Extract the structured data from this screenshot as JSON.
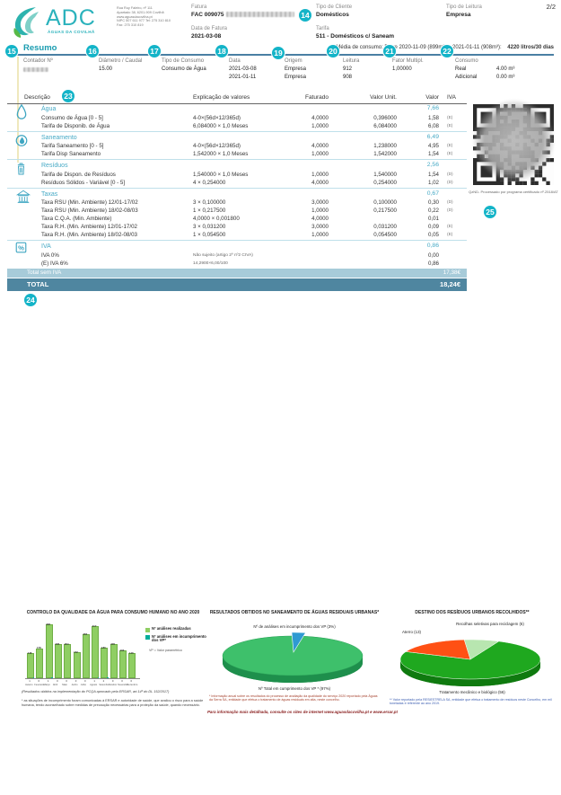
{
  "header": {
    "brand": "ADC",
    "brand_sub": "ÁGUAS DA COVILHÃ",
    "address_lines": [
      "Rua Ruy Faleiro, nº 111",
      "Apartado 38, 6201-909 Covilhã",
      "www.aguasdacovilha.pt",
      "NIPC 507 611 977  Tel: 275 310 810",
      "Fax: 275 310 819"
    ],
    "fatura_label": "Fatura",
    "fatura_value": "FAC 009075",
    "data_fatura_label": "Data de Fatura",
    "data_fatura_value": "2021-03-08",
    "tipo_cliente_label": "Tipo de Cliente",
    "tipo_cliente_value": "Domésticos",
    "tarifa_label": "Tarifa",
    "tarifa_value": "511 - Domésticos c/ Saneam",
    "tipo_leitura_label": "Tipo de Leitura",
    "tipo_leitura_value": "Empresa",
    "page_number": "2/2"
  },
  "annotations": {
    "badges": [
      "14",
      "15",
      "16",
      "17",
      "18",
      "19",
      "20",
      "21",
      "22",
      "23",
      "24",
      "25"
    ]
  },
  "resumo": {
    "title": "Resumo",
    "media_text": "Média de consumo: Entre  2020-11-09 (899m³) e 2021-01-11 (908m³):",
    "media_value": "4220 litros/30 dias",
    "contador_label": "Contador Nº",
    "diametro_label": "Diâmetro / Caudal",
    "diametro_value": "15.00",
    "tipo_consumo_label": "Tipo de Consumo",
    "tipo_consumo_value": "Consumo de Água",
    "data_label": "Data",
    "data_values": [
      "2021-03-08",
      "2021-01-11"
    ],
    "origem_label": "Origem",
    "origem_values": [
      "Empresa",
      "Empresa"
    ],
    "leitura_label": "Leitura",
    "leitura_values": [
      "912",
      "908"
    ],
    "fator_label": "Fator Multipl.",
    "fator_value": "1,00000",
    "consumo_label": "Consumo",
    "consumo_rows": [
      {
        "k": "Real",
        "v": "4.00 m³"
      },
      {
        "k": "Adicional",
        "v": "0.00 m³"
      }
    ]
  },
  "invoice_table": {
    "header": {
      "descricao": "Descrição",
      "explicacao": "Explicação de valores",
      "faturado": "Faturado",
      "valor_unit": "Valor Unit.",
      "valor": "Valor",
      "iva": "IVA"
    },
    "sections": [
      {
        "name": "Água",
        "icon": "water-drop-icon",
        "total": "7,66",
        "rows": [
          {
            "name": "Consumo de Água [0 - 5]",
            "explicacao": "4-0×(56d×12/365d)",
            "faturado": "4,0000",
            "valor_unit": "0,396000",
            "valor": "1,58",
            "iva": "(E)"
          },
          {
            "name": "Tarifa de Disponib. de Água",
            "explicacao": "6,084000 × 1,0 Meses",
            "faturado": "1,0000",
            "valor_unit": "6,084000",
            "valor": "6,08",
            "iva": "(E)"
          }
        ]
      },
      {
        "name": "Saneamento",
        "icon": "sanitation-icon",
        "total": "6,49",
        "rows": [
          {
            "name": "Tarifa Saneamento [0 - 5]",
            "explicacao": "4-0×(56d×12/365d)",
            "faturado": "4,0000",
            "valor_unit": "1,238000",
            "valor": "4,95",
            "iva": "(E)"
          },
          {
            "name": "Tarifa Disp Saneamento",
            "explicacao": "1,542000 × 1,0 Meses",
            "faturado": "1,0000",
            "valor_unit": "1,542000",
            "valor": "1,54",
            "iva": "(E)"
          }
        ]
      },
      {
        "name": "Resíduos",
        "icon": "waste-bin-icon",
        "total": "2,56",
        "rows": [
          {
            "name": "Tarifa de Dispon. de Resíduos",
            "explicacao": "1,540000 × 1,0 Meses",
            "faturado": "1,0000",
            "valor_unit": "1,540000",
            "valor": "1,54",
            "iva": "(D)"
          },
          {
            "name": "Resíduos Sólidos - Variável [0 - 5]",
            "explicacao": "4 × 0,254000",
            "faturado": "4,0000",
            "valor_unit": "0,254000",
            "valor": "1,02",
            "iva": "(D)"
          }
        ]
      },
      {
        "name": "Taxas",
        "icon": "taxes-icon",
        "total": "0,67",
        "rows": [
          {
            "name": "Taxa RSU (Min. Ambiente) 12/01-17/02",
            "explicacao": "3 × 0,100000",
            "faturado": "3,0000",
            "valor_unit": "0,100000",
            "valor": "0,30",
            "iva": "(D)"
          },
          {
            "name": "Taxa RSU (Min. Ambiente) 18/02-08/03",
            "explicacao": "1 × 0,217500",
            "faturado": "1,0000",
            "valor_unit": "0,217500",
            "valor": "0,22",
            "iva": "(D)"
          },
          {
            "name": "Taxa C.Q.A. (Min. Ambiente)",
            "explicacao": "4,0000 × 0,001800",
            "faturado": "4,0000",
            "valor_unit": "",
            "valor": "0,01",
            "iva": ""
          },
          {
            "name": "Taxa R.H. (Min. Ambiente) 12/01-17/02",
            "explicacao": "3 × 0,031200",
            "faturado": "3,0000",
            "valor_unit": "0,031200",
            "valor": "0,09",
            "iva": "(E)"
          },
          {
            "name": "Taxa R.H. (Min. Ambiente) 18/02-08/03",
            "explicacao": "1 × 0,054500",
            "faturado": "1,0000",
            "valor_unit": "0,054500",
            "valor": "0,05",
            "iva": "(E)"
          }
        ]
      },
      {
        "name": "IVA",
        "icon": "vat-icon",
        "total": "0,86",
        "rows": [
          {
            "name": "IVA 0%",
            "explicacao": "Não sujeito (artigo 2º nº2 CIVA)",
            "faturado": "",
            "valor_unit": "",
            "valor": "0,00",
            "iva": "",
            "small": true
          },
          {
            "name": "(E) IVA 6%",
            "explicacao": "14,2900×6,00/100",
            "faturado": "",
            "valor_unit": "",
            "valor": "0,86",
            "iva": "",
            "small": true
          }
        ]
      }
    ],
    "totals": {
      "subtotal_label": "Total sem IVA",
      "subtotal_value": "17,38€",
      "total_label": "TOTAL",
      "total_value": "18,24€"
    }
  },
  "qr": {
    "caption": "QzND- Processado por programa certificado nº.2518/AT"
  },
  "chart_data": [
    {
      "id": "water_quality",
      "type": "bar",
      "title": "CONTROLO DA QUALIDADE DA ÁGUA PARA CONSUMO HUMANO NO ANO 2020",
      "categories": [
        "Janeiro",
        "Fevereiro",
        "Março",
        "Abril",
        "Maio",
        "Junho",
        "Julho",
        "Agosto",
        "Setembro",
        "Outubro",
        "Novembro",
        "Dezembro"
      ],
      "series": [
        {
          "name": "Nº análises realizadas",
          "color": "#8fce63",
          "values": [
            148,
            178,
            328,
            205,
            204,
            152,
            265,
            317,
            180,
            205,
            163,
            146
          ]
        },
        {
          "name": "Nº análises em incumprimento dos VP*",
          "color": "#00ad9a",
          "values": [
            1,
            0,
            1,
            0,
            0,
            0,
            0,
            1,
            2,
            0,
            0,
            0
          ]
        }
      ],
      "note": "VP = Valor paramétrico",
      "ylim": [
        0,
        350
      ],
      "legend_position": "right",
      "footnotes": [
        "(Resultados obtidos na implementação do PCQA aprovado pela ERSAR, art.14º do DL 152/2017)",
        "* as situações de incumprimento foram comunicadas à ERSAR e autoridade de saúde, que avaliou o risco para a saúde humana, tendo aconselhado sobre medidas de precaução necessárias para a proteção da saúde, quando necessário."
      ]
    },
    {
      "id": "saneamento",
      "type": "pie",
      "title": "RESULTADOS OBTIDOS NO SANEAMENTO DE ÁGUAS RESIDUAIS URBANAS*",
      "slices": [
        {
          "label": "Nº Total em cumprimento dos VP * (97%)",
          "value": 97,
          "color": "#3ec06b"
        },
        {
          "label": "Nº de análises em incumprimento dos VP (3%)",
          "value": 3,
          "color": "#2f9ad2"
        }
      ],
      "footnote": "* Informação anual sobre os resultados do processo de avaliação da qualidade do serviço 2020 reportado pela Águas da Serra SA, entidade que efetua o tratamento de águas residuais em alta, neste concelho."
    },
    {
      "id": "residuos",
      "type": "pie",
      "title": "DESTINO DOS RESÍDUOS URBANOS RECOLHIDOS**",
      "slices": [
        {
          "label": "Tratamento mecânico e biológico (56)",
          "value": 56,
          "color": "#1fa81f"
        },
        {
          "label": "Aterro (13)",
          "value": 13,
          "color": "#ff5014"
        },
        {
          "label": "Recolhas seletivas para reciclagem (6)",
          "value": 6,
          "color": "#b8e6b0"
        }
      ],
      "footnote": "** Valor reportado pela RESIESTRELA SA, entidade que efetua o tratamento de resíduos neste Concelho, em mil toneladas e referente ao ano 2019."
    }
  ],
  "charts_footer": "Para informação mais detalhada, consulte os sites de internet www.aguasdacovilha.pt e www.ersar.pt"
}
